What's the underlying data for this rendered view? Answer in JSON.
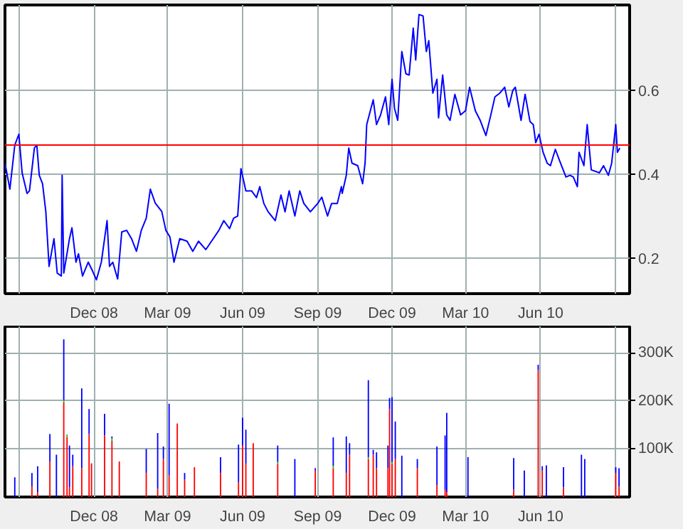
{
  "chart_data": [
    {
      "type": "line",
      "xlim": [
        "2008-08-14",
        "2010-09-18"
      ],
      "ylim": [
        0.115,
        0.803
      ],
      "yticks": [
        0.2,
        0.4,
        0.6
      ],
      "xticks": [
        {
          "value": "2008-09-01",
          "label": null
        },
        {
          "value": "2008-12-01",
          "label": "Dec 08"
        },
        {
          "value": "2009-03-01",
          "label": "Mar 09"
        },
        {
          "value": "2009-06-01",
          "label": "Jun 09"
        },
        {
          "value": "2009-09-01",
          "label": "Sep 09"
        },
        {
          "value": "2009-12-01",
          "label": "Dec 09"
        },
        {
          "value": "2010-03-01",
          "label": "Mar 10"
        },
        {
          "value": "2010-06-01",
          "label": "Jun 10"
        },
        {
          "value": "2010-09-01",
          "label": null
        }
      ],
      "grid": true,
      "ref_lines": [
        {
          "axis": "y",
          "value": 0.469,
          "color": "#ff0000"
        }
      ],
      "x": [
        "2008-08-14",
        "2008-08-20",
        "2008-08-26",
        "2008-08-31",
        "2008-09-04",
        "2008-09-10",
        "2008-09-13",
        "2008-09-19",
        "2008-09-22",
        "2008-09-25",
        "2008-09-29",
        "2008-10-03",
        "2008-10-07",
        "2008-10-13",
        "2008-10-17",
        "2008-10-22",
        "2008-10-23",
        "2008-10-25",
        "2008-11-01",
        "2008-11-04",
        "2008-11-09",
        "2008-11-12",
        "2008-11-17",
        "2008-11-24",
        "2008-11-29",
        "2008-12-04",
        "2008-12-10",
        "2008-12-17",
        "2008-12-20",
        "2008-12-24",
        "2008-12-30",
        "2009-01-04",
        "2009-01-10",
        "2009-01-16",
        "2009-01-22",
        "2009-01-28",
        "2009-02-03",
        "2009-02-08",
        "2009-02-14",
        "2009-02-22",
        "2009-02-27",
        "2009-03-04",
        "2009-03-09",
        "2009-03-16",
        "2009-03-25",
        "2009-04-01",
        "2009-04-08",
        "2009-04-17",
        "2009-04-26",
        "2009-05-03",
        "2009-05-09",
        "2009-05-16",
        "2009-05-21",
        "2009-05-26",
        "2009-05-30",
        "2009-06-05",
        "2009-06-12",
        "2009-06-18",
        "2009-06-22",
        "2009-06-27",
        "2009-07-02",
        "2009-07-11",
        "2009-07-18",
        "2009-07-23",
        "2009-07-28",
        "2009-08-04",
        "2009-08-10",
        "2009-08-15",
        "2009-08-23",
        "2009-09-01",
        "2009-09-06",
        "2009-09-13",
        "2009-09-18",
        "2009-09-25",
        "2009-09-30",
        "2009-10-01",
        "2009-10-06",
        "2009-10-09",
        "2009-10-13",
        "2009-10-20",
        "2009-10-26",
        "2009-10-29",
        "2009-10-31",
        "2009-11-08",
        "2009-11-12",
        "2009-11-17",
        "2009-11-23",
        "2009-11-27",
        "2009-12-01",
        "2009-12-04",
        "2009-12-08",
        "2009-12-13",
        "2009-12-18",
        "2009-12-22",
        "2009-12-27",
        "2009-12-30",
        "2010-01-03",
        "2010-01-08",
        "2010-01-12",
        "2010-01-15",
        "2010-01-20",
        "2010-01-25",
        "2010-01-27",
        "2010-02-01",
        "2010-02-06",
        "2010-02-10",
        "2010-02-16",
        "2010-02-23",
        "2010-03-01",
        "2010-03-06",
        "2010-03-13",
        "2010-03-19",
        "2010-03-26",
        "2010-04-01",
        "2010-04-06",
        "2010-04-12",
        "2010-04-18",
        "2010-04-23",
        "2010-04-28",
        "2010-05-01",
        "2010-05-08",
        "2010-05-13",
        "2010-05-19",
        "2010-05-23",
        "2010-05-26",
        "2010-05-30",
        "2010-06-04",
        "2010-06-09",
        "2010-06-13",
        "2010-06-19",
        "2010-06-24",
        "2010-07-02",
        "2010-07-07",
        "2010-07-11",
        "2010-07-16",
        "2010-07-18",
        "2010-07-24",
        "2010-07-28",
        "2010-08-02",
        "2010-08-12",
        "2010-08-17",
        "2010-08-23",
        "2010-08-27",
        "2010-09-01",
        "2010-09-03",
        "2010-09-06"
      ],
      "series": [
        {
          "color": "#0000ff",
          "values": [
            0.426,
            0.364,
            0.469,
            0.495,
            0.403,
            0.354,
            0.36,
            0.462,
            0.469,
            0.397,
            0.377,
            0.311,
            0.18,
            0.246,
            0.164,
            0.157,
            0.397,
            0.164,
            0.246,
            0.272,
            0.19,
            0.21,
            0.157,
            0.19,
            0.17,
            0.148,
            0.19,
            0.289,
            0.18,
            0.19,
            0.15,
            0.262,
            0.266,
            0.246,
            0.216,
            0.266,
            0.295,
            0.364,
            0.331,
            0.311,
            0.266,
            0.25,
            0.19,
            0.246,
            0.24,
            0.216,
            0.24,
            0.22,
            0.246,
            0.266,
            0.289,
            0.27,
            0.295,
            0.3,
            0.413,
            0.36,
            0.36,
            0.344,
            0.37,
            0.33,
            0.311,
            0.289,
            0.35,
            0.31,
            0.36,
            0.3,
            0.36,
            0.33,
            0.31,
            0.33,
            0.345,
            0.3,
            0.33,
            0.33,
            0.37,
            0.354,
            0.397,
            0.462,
            0.426,
            0.42,
            0.377,
            0.426,
            0.518,
            0.577,
            0.518,
            0.541,
            0.584,
            0.518,
            0.626,
            0.557,
            0.528,
            0.692,
            0.639,
            0.636,
            0.748,
            0.672,
            0.78,
            0.777,
            0.692,
            0.718,
            0.593,
            0.626,
            0.534,
            0.636,
            0.541,
            0.528,
            0.59,
            0.541,
            0.551,
            0.607,
            0.551,
            0.528,
            0.492,
            0.541,
            0.584,
            0.593,
            0.607,
            0.56,
            0.6,
            0.607,
            0.528,
            0.59,
            0.525,
            0.518,
            0.475,
            0.495,
            0.452,
            0.426,
            0.42,
            0.459,
            0.433,
            0.393,
            0.397,
            0.393,
            0.37,
            0.452,
            0.42,
            0.518,
            0.41,
            0.403,
            0.42,
            0.397,
            0.426,
            0.518,
            0.452,
            0.462
          ]
        }
      ]
    },
    {
      "type": "bar",
      "stacked": true,
      "xlim": [
        "2008-08-14",
        "2010-09-18"
      ],
      "ylim": [
        0,
        355000
      ],
      "yticks": [
        {
          "value": 100000,
          "label": "100K"
        },
        {
          "value": 200000,
          "label": "200K"
        },
        {
          "value": 300000,
          "label": "300K"
        }
      ],
      "xticks": [
        {
          "value": "2008-09-01",
          "label": null
        },
        {
          "value": "2008-12-01",
          "label": "Dec 08"
        },
        {
          "value": "2009-03-01",
          "label": "Mar 09"
        },
        {
          "value": "2009-06-01",
          "label": "Jun 09"
        },
        {
          "value": "2009-09-01",
          "label": "Sep 09"
        },
        {
          "value": "2009-12-01",
          "label": "Dec 09"
        },
        {
          "value": "2010-03-01",
          "label": "Mar 10"
        },
        {
          "value": "2010-06-01",
          "label": "Jun 10"
        },
        {
          "value": "2010-09-01",
          "label": null
        }
      ],
      "grid": true,
      "x": [
        "2008-08-26",
        "2008-09-16",
        "2008-09-23",
        "2008-10-08",
        "2008-10-16",
        "2008-10-25",
        "2008-10-29",
        "2008-11-01",
        "2008-11-05",
        "2008-11-16",
        "2008-11-25",
        "2008-11-28",
        "2008-12-14",
        "2008-12-23",
        "2009-01-01",
        "2009-02-03",
        "2009-02-17",
        "2009-02-24",
        "2009-03-03",
        "2009-03-13",
        "2009-03-22",
        "2009-04-03",
        "2009-05-05",
        "2009-05-27",
        "2009-06-01",
        "2009-06-05",
        "2009-06-14",
        "2009-07-14",
        "2009-08-04",
        "2009-08-29",
        "2009-09-20",
        "2009-10-06",
        "2009-10-10",
        "2009-11-02",
        "2009-11-08",
        "2009-11-12",
        "2009-11-26",
        "2009-11-28",
        "2009-12-01",
        "2009-12-05",
        "2009-12-13",
        "2010-01-01",
        "2010-01-25",
        "2010-02-04",
        "2010-02-06",
        "2010-03-04",
        "2010-04-29",
        "2010-05-12",
        "2010-05-29",
        "2010-06-03",
        "2010-06-08",
        "2010-06-29",
        "2010-07-21",
        "2010-07-25",
        "2010-09-01",
        "2010-09-05"
      ],
      "series": [
        {
          "color": "#ff0000",
          "values": [
            null,
            22000,
            10000,
            74000,
            null,
            197000,
            125000,
            20000,
            64000,
            60000,
            131000,
            70000,
            128000,
            117000,
            74000,
            50000,
            17000,
            79000,
            45000,
            153000,
            36000,
            62000,
            50000,
            31000,
            107000,
            69000,
            112000,
            69000,
            null,
            55000,
            60000,
            50000,
            88000,
            79000,
            88000,
            60000,
            60000,
            183000,
            69000,
            79000,
            null,
            60000,
            25000,
            15000,
            10000,
            null,
            15000,
            null,
            264000,
            55000,
            null,
            20000,
            null,
            null,
            50000,
            22000
          ]
        },
        {
          "color": "#00cc00",
          "values": [
            null,
            null,
            null,
            null,
            null,
            5000,
            5000,
            null,
            null,
            null,
            null,
            null,
            null,
            5000,
            null,
            null,
            null,
            null,
            null,
            null,
            null,
            null,
            null,
            null,
            null,
            null,
            null,
            4000,
            null,
            null,
            5000,
            null,
            null,
            4000,
            null,
            null,
            null,
            null,
            4000,
            null,
            null,
            null,
            null,
            null,
            null,
            null,
            null,
            null,
            null,
            null,
            null,
            null,
            null,
            null,
            null,
            null
          ]
        },
        {
          "color": "#0000ff",
          "values": [
            41000,
            28000,
            54000,
            57000,
            88000,
            126000,
            null,
            87000,
            24000,
            166000,
            52000,
            null,
            45000,
            4000,
            null,
            50000,
            116000,
            26000,
            149000,
            null,
            14000,
            null,
            33000,
            78000,
            58000,
            71000,
            null,
            34000,
            79000,
            5000,
            59000,
            76000,
            24000,
            160000,
            10000,
            33000,
            47000,
            23000,
            135000,
            78000,
            86000,
            19000,
            80000,
            113000,
            165000,
            83000,
            66000,
            55000,
            11000,
            9000,
            66000,
            42000,
            88000,
            79000,
            12000,
            38000
          ]
        }
      ]
    }
  ]
}
